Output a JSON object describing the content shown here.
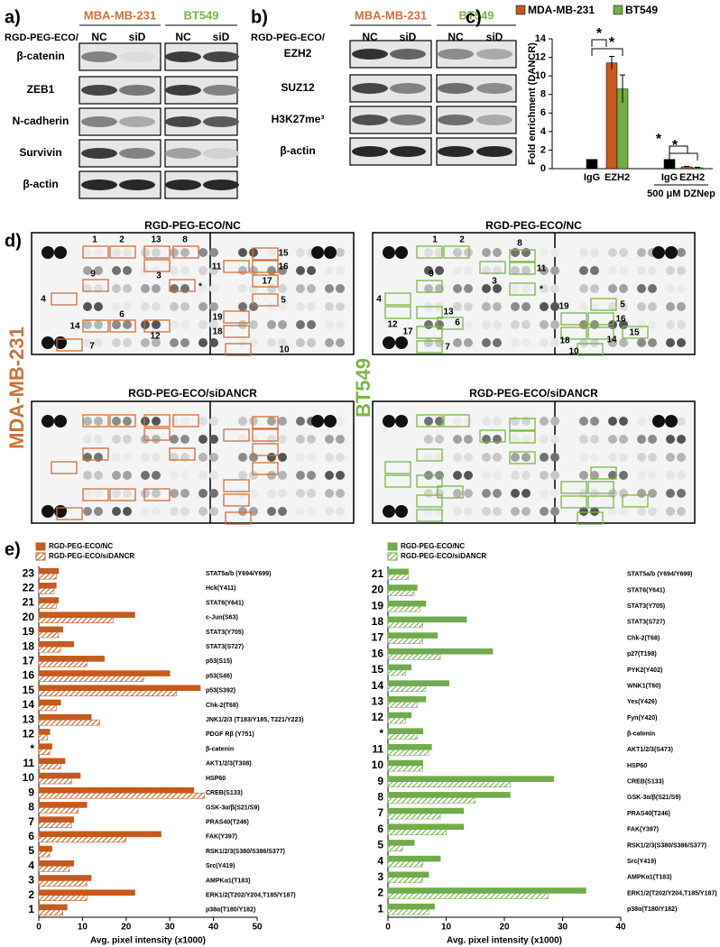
{
  "panel_a": {
    "label": "a)",
    "cell_lines": [
      "MBA-MB-231",
      "BT549"
    ],
    "treatment": "RGD-PEG-ECO/",
    "lanes": [
      "NC",
      "siD",
      "NC",
      "siD"
    ],
    "proteins": [
      "β-catenin",
      "ZEB1",
      "N-cadherin",
      "Survivin",
      "β-actin"
    ]
  },
  "panel_b": {
    "label": "b)",
    "cell_lines": [
      "MBA-MB-231",
      "BT549"
    ],
    "treatment": "RGD-PEG-ECO/",
    "lanes": [
      "NC",
      "siD",
      "NC",
      "siD"
    ],
    "proteins": [
      "EZH2",
      "SUZ12",
      "H3K27me³",
      "β-actin"
    ]
  },
  "panel_d": {
    "label": "d)",
    "titles": [
      "RGD-PEG-ECO/NC",
      "RGD-PEG-ECO/NC",
      "RGD-PEG-ECO/siDANCR",
      "RGD-PEG-ECO/siDANCR"
    ],
    "cell_lines": [
      "MDA-MB-231",
      "BT549"
    ],
    "spots_mda": [
      "1",
      "2",
      "13",
      "8",
      "3",
      "9",
      "*",
      "4",
      "14",
      "6",
      "12",
      "7",
      "15",
      "11",
      "16",
      "17",
      "5",
      "19",
      "18",
      "10"
    ],
    "spots_bt": [
      "1",
      "2",
      "8",
      "11",
      "3",
      "9",
      "*",
      "4",
      "12",
      "13",
      "6",
      "17",
      "7",
      "19",
      "5",
      "16",
      "15",
      "18",
      "14",
      "10"
    ]
  },
  "chart_data": [
    {
      "type": "bar",
      "panel_label": "c)",
      "categories": [
        "IgG",
        "EZH2",
        "IgG",
        "EZH2"
      ],
      "group_label": "500 μM DZNep",
      "ylabel": "Fold enrichment (DANCR)",
      "series": [
        {
          "name": "MDA-MB-231",
          "color": "#c55a1e",
          "colors": [
            "#000000",
            "#c55a1e",
            "#000000",
            "#c55a1e"
          ],
          "values": [
            1,
            11.4,
            1,
            0.2
          ],
          "errors": [
            null,
            0.7,
            null,
            0.05
          ]
        },
        {
          "name": "BT549",
          "color": "#70ad47",
          "values": [
            null,
            8.6,
            null,
            0.1
          ],
          "errors": [
            null,
            1.5,
            null,
            0.05
          ]
        }
      ],
      "ylim": [
        0,
        14
      ],
      "yticks": [
        0,
        2,
        4,
        6,
        8,
        10,
        12,
        14
      ],
      "annotations": [
        "*",
        "*",
        "*",
        "*"
      ]
    },
    {
      "type": "barh",
      "panel_label": "e)",
      "xlabel": "Avg. pixel intensity (x1000)",
      "xlim": [
        0,
        50
      ],
      "xticks": [
        0,
        10,
        20,
        30,
        40,
        50
      ],
      "row_labels": [
        "23",
        "22",
        "21",
        "20",
        "19",
        "18",
        "17",
        "16",
        "15",
        "14",
        "13",
        "12",
        "*",
        "11",
        "10",
        "9",
        "8",
        "7",
        "6",
        "5",
        "4",
        "3",
        "2",
        "1"
      ],
      "categories": [
        "STAT5a/b (Y694/Y699)",
        "Hck(Y411)",
        "STAT6(Y641)",
        "c-Jun(S63)",
        "STAT3(Y705)",
        "STAT3(S727)",
        "p53(S15)",
        "p53(S46)",
        "p53(S392)",
        "Chk-2(T68)",
        "JNK1/2/3 (T183/Y185, T221/Y223)",
        "PDGF Rβ (Y751)",
        "β-catenin",
        "AKT1/2/3(T308)",
        "HSP60",
        "CREB(S133)",
        "GSK-3α/β(S21/S9)",
        "PRAS40(T246)",
        "FAK(Y397)",
        "RSK1/2/3(S380/S386/S377)",
        "Src(Y419)",
        "AMPKα1(T183)",
        "ERK1/2(T202/Y204,T185/Y187)",
        "p38α(T180/Y182)"
      ],
      "series": [
        {
          "name": "RGD-PEG-ECO/NC",
          "color": "#c55a1e",
          "values": [
            4.5,
            4,
            4.5,
            22,
            5.5,
            8,
            15,
            30,
            37,
            5,
            12,
            2.5,
            3,
            6,
            9.5,
            35.5,
            11,
            8,
            28,
            3,
            8,
            12,
            22,
            6.5
          ]
        },
        {
          "name": "RGD-PEG-ECO/siDANCR",
          "color": "#c55a1e",
          "hatch": true,
          "values": [
            4,
            3.5,
            4,
            17,
            4.5,
            5,
            11,
            24,
            31.5,
            4,
            14,
            2,
            2.5,
            5,
            7.5,
            38,
            9,
            7.5,
            20,
            2.5,
            7,
            11,
            11,
            5.5
          ]
        }
      ]
    },
    {
      "type": "barh",
      "xlabel": "Avg. pixel intensity (x1000)",
      "xlim": [
        0,
        40
      ],
      "xticks": [
        0,
        10,
        20,
        30,
        40
      ],
      "row_labels": [
        "21",
        "20",
        "19",
        "18",
        "17",
        "16",
        "15",
        "14",
        "13",
        "12",
        "*",
        "11",
        "10",
        "9",
        "8",
        "7",
        "6",
        "5",
        "4",
        "3",
        "2",
        "1"
      ],
      "categories": [
        "STAT5a/b (Y694/Y699)",
        "STAT6(Y641)",
        "STAT3(Y705)",
        "STAT3(S727)",
        "Chk-2(T68)",
        "p27(T198)",
        "PYK2(Y402)",
        "WNK1(T60)",
        "Yes(Y426)",
        "Fyn(Y420)",
        "β-catenin",
        "AKT1/2/3(S473)",
        "HSP60",
        "CREB(S133)",
        "GSK-3α/β(S21/S9)",
        "PRAS40(T246)",
        "FAK(Y397)",
        "RSK1/2/3(S380/S386/S377)",
        "Src(Y419)",
        "AMPKα1(T183)",
        "ERK1/2(T202/Y204,T185/Y187)",
        "p38α(T180/Y182)"
      ],
      "series": [
        {
          "name": "RGD-PEG-ECO/NC",
          "color": "#70ad47",
          "values": [
            3.5,
            5,
            6.5,
            13.5,
            8.5,
            18,
            4,
            10.5,
            6.5,
            4,
            6,
            7.5,
            6,
            28.5,
            21,
            13,
            13,
            4.5,
            9,
            7,
            34,
            8
          ]
        },
        {
          "name": "RGD-PEG-ECO/siDANCR",
          "color": "#70ad47",
          "hatch": true,
          "values": [
            3.5,
            4.5,
            5.5,
            6,
            6,
            9,
            3,
            6.5,
            5,
            3,
            5,
            7,
            6,
            21,
            15,
            9,
            10,
            2.5,
            6,
            6,
            27.5,
            7
          ]
        }
      ]
    }
  ]
}
